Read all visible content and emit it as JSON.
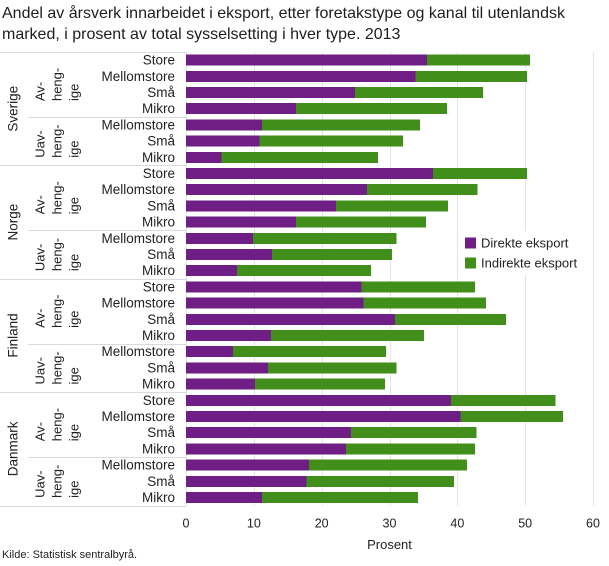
{
  "chart_data": {
    "type": "bar",
    "orientation": "horizontal",
    "stacked": true,
    "title": "Andel av årsverk innarbeidet i eksport, etter foretakstype og kanal til utenlandsk marked, i prosent av total sysselsetting i hver type. 2013",
    "xlabel": "Prosent",
    "xlim": [
      0,
      60
    ],
    "xticks": [
      0,
      10,
      20,
      30,
      40,
      50,
      60
    ],
    "grid": true,
    "legend_position": "right",
    "groups": [
      {
        "country": "Sverige",
        "subgroups": [
          {
            "label_lines": [
              "Av-",
              "heng-",
              "ige"
            ],
            "categories": [
              "Store",
              "Mellomstore",
              "Små",
              "Mikro"
            ]
          },
          {
            "label_lines": [
              "Uav-",
              "heng-",
              "ige"
            ],
            "categories": [
              "Mellomstore",
              "Små",
              "Mikro"
            ]
          }
        ]
      },
      {
        "country": "Norge",
        "subgroups": [
          {
            "label_lines": [
              "Av-",
              "heng-",
              "ige"
            ],
            "categories": [
              "Store",
              "Mellomstore",
              "Små",
              "Mikro"
            ]
          },
          {
            "label_lines": [
              "Uav-",
              "heng-",
              "ige"
            ],
            "categories": [
              "Mellomstore",
              "Små",
              "Mikro"
            ]
          }
        ]
      },
      {
        "country": "Finland",
        "subgroups": [
          {
            "label_lines": [
              "Av-",
              "heng-",
              "ige"
            ],
            "categories": [
              "Store",
              "Mellomstore",
              "Små",
              "Mikro"
            ]
          },
          {
            "label_lines": [
              "Uav-",
              "heng-",
              "ige"
            ],
            "categories": [
              "Mellomstore",
              "Små",
              "Mikro"
            ]
          }
        ]
      },
      {
        "country": "Danmark",
        "subgroups": [
          {
            "label_lines": [
              "Av-",
              "heng-",
              "ige"
            ],
            "categories": [
              "Store",
              "Mellomstore",
              "Små",
              "Mikro"
            ]
          },
          {
            "label_lines": [
              "Uav-",
              "heng-",
              "ige"
            ],
            "categories": [
              "Mellomstore",
              "Små",
              "Mikro"
            ]
          }
        ]
      }
    ],
    "series": [
      {
        "name": "Direkte eksport",
        "color": "#6f1e86",
        "values": [
          35.5,
          33.8,
          24.9,
          16.2,
          11.2,
          10.8,
          5.2,
          36.4,
          26.7,
          22.1,
          16.2,
          9.9,
          12.7,
          7.5,
          25.9,
          26.2,
          30.8,
          12.5,
          6.9,
          12.1,
          10.2,
          39.1,
          40.5,
          24.3,
          23.6,
          18.1,
          17.8,
          11.2
        ]
      },
      {
        "name": "Indirekte eksport",
        "color": "#418f1a",
        "values": [
          15.2,
          16.5,
          18.9,
          22.3,
          23.3,
          21.2,
          23.1,
          13.9,
          16.3,
          16.5,
          19.2,
          21.1,
          17.7,
          19.8,
          16.7,
          18.0,
          16.4,
          22.6,
          22.6,
          18.9,
          19.1,
          15.4,
          15.1,
          18.5,
          19.0,
          23.3,
          21.7,
          23.0
        ]
      }
    ]
  },
  "source": "Kilde: Statistisk sentralbyrå."
}
